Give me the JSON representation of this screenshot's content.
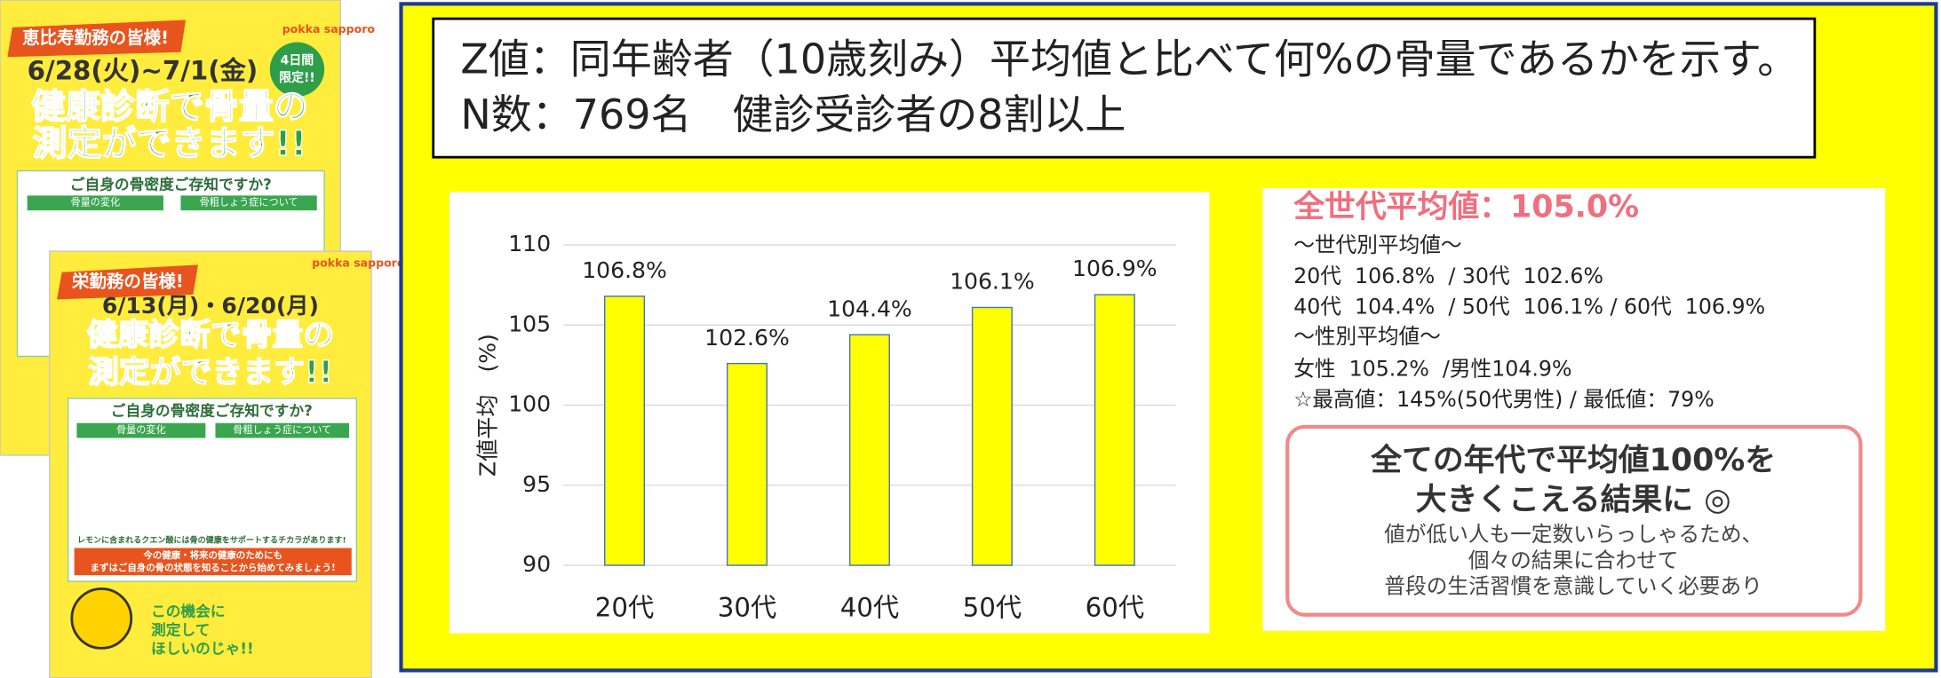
{
  "posters": [
    {
      "header": "恵比寿勤務の皆様!",
      "brand": "pokka sapporo",
      "dates": "6/28(火)~7/1(金)",
      "badge": [
        "4日間",
        "限定!!"
      ],
      "headline": [
        "健康診断で骨量の",
        "測定ができます!!"
      ],
      "section": "ご自身の骨密度ご存知ですか?",
      "tabs": [
        "骨量の変化",
        "骨粗しょう症について"
      ]
    },
    {
      "header": "栄勤務の皆様!",
      "brand": "pokka sapporo",
      "dates": "6/13(月)・6/20(月)",
      "headline": [
        "健康診断で骨量の",
        "測定ができます!!"
      ],
      "section": "ご自身の骨密度ご存知ですか?",
      "tabs": [
        "骨量の変化",
        "骨粗しょう症について"
      ],
      "notes": [
        "レモンに含まれるクエン酸には骨の健康をサポートするチカラがあります!",
        "今の健康・将来の健康のためにも",
        "まずはご自身の骨の状態を知ることから始めてみましょう!"
      ],
      "mascot": [
        "この機会に",
        "測定して",
        "ほしいのじゃ!!"
      ]
    }
  ],
  "header": {
    "lines": [
      "Z値：同年齢者（10歳刻み）平均値と比べて何%の骨量であるかを示す。",
      "N数：769名　健診受診者の8割以上"
    ]
  },
  "chart_data": {
    "type": "bar",
    "y_label": "Z値平均　(%)",
    "categories": [
      "20代",
      "30代",
      "40代",
      "50代",
      "60代"
    ],
    "values": [
      106.8,
      102.6,
      104.4,
      106.1,
      106.9
    ],
    "value_labels": [
      "106.8%",
      "102.6%",
      "104.4%",
      "106.1%",
      "106.9%"
    ],
    "color": "#ffff00",
    "edge_color": "#4472c4",
    "ylim": [
      90,
      110
    ],
    "yticks": [
      90,
      95,
      100,
      105,
      110
    ],
    "grid": true
  },
  "summary": {
    "title": "全世代平均値：105.0%",
    "lines": [
      "～世代別平均値～",
      "20代  106.8%  / 30代  102.6%",
      "40代  104.4%  / 50代  106.1% / 60代  106.9%",
      "～性別平均値～",
      "女性  105.2%  /男性104.9%",
      "☆最高値：145%(50代男性) / 最低値：79%"
    ],
    "conclusion": {
      "headline": [
        "全ての年代で平均値100%を",
        "大きくこえる結果に ◎"
      ],
      "body": [
        "値が低い人も一定数いらっしゃるため、",
        "個々の結果に合わせて",
        "普段の生活習慣を意識していく必要あり"
      ]
    }
  }
}
